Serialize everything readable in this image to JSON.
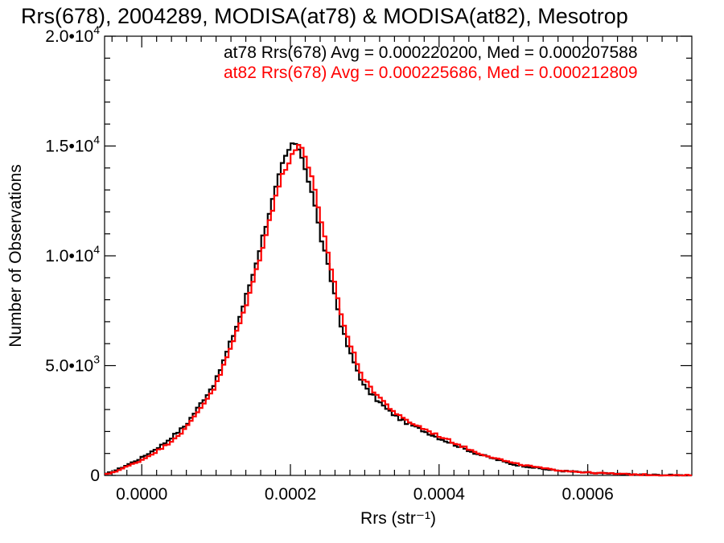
{
  "chart_data": {
    "type": "line",
    "title": "Rrs(678), 2004289, MODISA(at78) & MODISA(at82), Mesotrop",
    "xlabel": "Rrs (str⁻¹)",
    "ylabel": "Number of Observations",
    "xlim": [
      -5e-05,
      0.00074
    ],
    "ylim": [
      0,
      20000
    ],
    "x_ticks": [
      {
        "value": 0.0,
        "label": "0.0000"
      },
      {
        "value": 0.0002,
        "label": "0.0002"
      },
      {
        "value": 0.0004,
        "label": "0.0004"
      },
      {
        "value": 0.0006,
        "label": "0.0006"
      }
    ],
    "y_ticks": [
      {
        "value": 0,
        "mantissa": "0",
        "exp": ""
      },
      {
        "value": 5000,
        "mantissa": "5.0•1",
        "exp": "3"
      },
      {
        "value": 10000,
        "mantissa": "1.0•1",
        "exp": "4"
      },
      {
        "value": 15000,
        "mantissa": "1.5•1",
        "exp": "4"
      },
      {
        "value": 20000,
        "mantissa": "2.0•1",
        "exp": "4"
      }
    ],
    "grid": false,
    "annotations": [
      {
        "text": "at78 Rrs(678) Avg = 0.000220200, Med = 0.000207588",
        "color": "#000000"
      },
      {
        "text": "at82 Rrs(678) Avg = 0.000225686, Med = 0.000212809",
        "color": "#ff0000"
      }
    ],
    "series": [
      {
        "color": "#000000",
        "x": [
          -5e-05,
          -3e-05,
          0.0,
          3e-05,
          6e-05,
          0.0001,
          0.00013,
          0.00015,
          0.00016,
          0.00017,
          0.00018,
          0.00019,
          0.0002,
          0.000205,
          0.00021,
          0.000215,
          0.00022,
          0.00023,
          0.00024,
          0.00025,
          0.00026,
          0.00027,
          0.00028,
          0.0003,
          0.00033,
          0.00035,
          0.0004,
          0.00045,
          0.0005,
          0.00055,
          0.0006,
          0.00065,
          0.0007,
          0.00074
        ],
        "y": [
          30,
          300,
          800,
          1450,
          2300,
          4300,
          7000,
          9200,
          10500,
          11800,
          13000,
          14200,
          14900,
          15300,
          14700,
          14600,
          14000,
          12800,
          11000,
          9600,
          8200,
          6600,
          5600,
          4000,
          3000,
          2500,
          1700,
          1000,
          500,
          250,
          120,
          50,
          15,
          0
        ]
      },
      {
        "color": "#ff0000",
        "x": [
          -5e-05,
          -3e-05,
          0.0,
          3e-05,
          6e-05,
          0.0001,
          0.00013,
          0.00015,
          0.00016,
          0.00017,
          0.00018,
          0.00019,
          0.0002,
          0.000205,
          0.00021,
          0.000215,
          0.00022,
          0.00023,
          0.00024,
          0.00025,
          0.00026,
          0.00027,
          0.00028,
          0.0003,
          0.00033,
          0.00035,
          0.0004,
          0.00045,
          0.0005,
          0.00055,
          0.0006,
          0.00065,
          0.0007,
          0.00074
        ],
        "y": [
          20,
          250,
          700,
          1300,
          2150,
          4100,
          6700,
          8800,
          10100,
          11400,
          12600,
          13800,
          14500,
          14800,
          14900,
          15000,
          14600,
          13400,
          11700,
          10200,
          8700,
          7100,
          6000,
          4300,
          3200,
          2600,
          1800,
          1050,
          550,
          270,
          130,
          55,
          15,
          0
        ]
      }
    ]
  }
}
